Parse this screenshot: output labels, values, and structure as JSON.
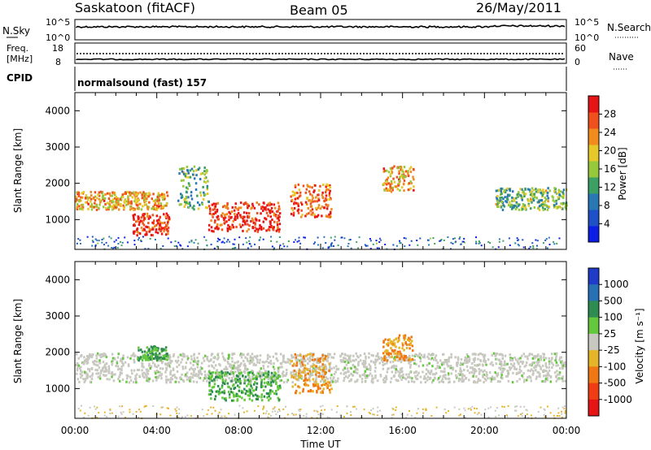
{
  "header": {
    "station": "Saskatoon (fitACF)",
    "beam": "Beam 05",
    "date": "26/May/2011"
  },
  "summary_panels": {
    "nsky_label": "N.Sky",
    "nsky_ticks": [
      "10^5",
      "10^0"
    ],
    "nsearch_label": "N.Search",
    "nsearch_ticks": [
      "10^5",
      "10^0"
    ],
    "freq_label_1": "Freq.",
    "freq_label_2": "[MHz]",
    "freq_ticks": [
      "18",
      "8"
    ],
    "nave_label": "Nave",
    "nave_ticks": [
      "60",
      "0"
    ],
    "cpid_label": "CPID",
    "cpid_text": "normalsound (fast) 157"
  },
  "chart_data": [
    {
      "type": "heatmap",
      "name": "power",
      "ylabel": "Slant Range [km]",
      "ylim": [
        180,
        4500
      ],
      "yticks": [
        "1000",
        "2000",
        "3000",
        "4000"
      ],
      "xlim": [
        "00:00",
        "24:00"
      ],
      "xticks": [
        "00:00",
        "04:00",
        "08:00",
        "12:00",
        "16:00",
        "20:00",
        "00:00"
      ],
      "colorbar": {
        "label": "Power [dB]",
        "ticks": [
          "4",
          "8",
          "12",
          "16",
          "20",
          "24",
          "28"
        ],
        "colors": [
          "#0a1ee6",
          "#1e50c8",
          "#2878b4",
          "#3ca064",
          "#96c83c",
          "#e6c828",
          "#f08c1e",
          "#f0501e",
          "#e61414"
        ]
      },
      "features": [
        {
          "t_start": 0,
          "t_end": 4.5,
          "range": [
            1300,
            1800
          ],
          "level": 20
        },
        {
          "t_start": 2.8,
          "t_end": 4.6,
          "range": [
            600,
            1200
          ],
          "level": 28
        },
        {
          "t_start": 6.5,
          "t_end": 10.0,
          "range": [
            700,
            1500
          ],
          "level": 28
        },
        {
          "t_start": 10.5,
          "t_end": 12.5,
          "range": [
            1100,
            2000
          ],
          "level": 24
        },
        {
          "t_start": 5.0,
          "t_end": 6.5,
          "range": [
            1300,
            2500
          ],
          "level": 16
        },
        {
          "t_start": 15.0,
          "t_end": 16.5,
          "range": [
            1800,
            2500
          ],
          "level": 20
        },
        {
          "t_start": 20.5,
          "t_end": 24.0,
          "range": [
            1300,
            1900
          ],
          "level": 16
        }
      ]
    },
    {
      "type": "heatmap",
      "name": "velocity",
      "ylabel": "Slant Range [km]",
      "ylim": [
        180,
        4500
      ],
      "yticks": [
        "1000",
        "2000",
        "3000",
        "4000"
      ],
      "xlim": [
        "00:00",
        "24:00"
      ],
      "xticks": [
        "00:00",
        "04:00",
        "08:00",
        "12:00",
        "16:00",
        "20:00",
        "00:00"
      ],
      "xlabel": "Time UT",
      "colorbar": {
        "label": "Velocity [m s⁻¹]",
        "ticks": [
          "1000",
          "500",
          "100",
          "25",
          "-25",
          "-100",
          "-500",
          "-1000"
        ],
        "colors": [
          "#1e3cc8",
          "#2870b4",
          "#2e8c50",
          "#64c83c",
          "#c8c8c0",
          "#e6b428",
          "#f07814",
          "#f03c14",
          "#e61414"
        ]
      },
      "features": [
        {
          "t_start": 0,
          "t_end": 24,
          "range": [
            1200,
            2000
          ],
          "value": 0
        },
        {
          "t_start": 6.5,
          "t_end": 10.0,
          "range": [
            700,
            1500
          ],
          "value": 300
        },
        {
          "t_start": 10.5,
          "t_end": 12.5,
          "range": [
            900,
            2000
          ],
          "value": -300
        },
        {
          "t_start": 15.0,
          "t_end": 16.5,
          "range": [
            1800,
            2500
          ],
          "value": -300
        },
        {
          "t_start": 3.0,
          "t_end": 4.5,
          "range": [
            1800,
            2200
          ],
          "value": 100
        }
      ]
    }
  ]
}
